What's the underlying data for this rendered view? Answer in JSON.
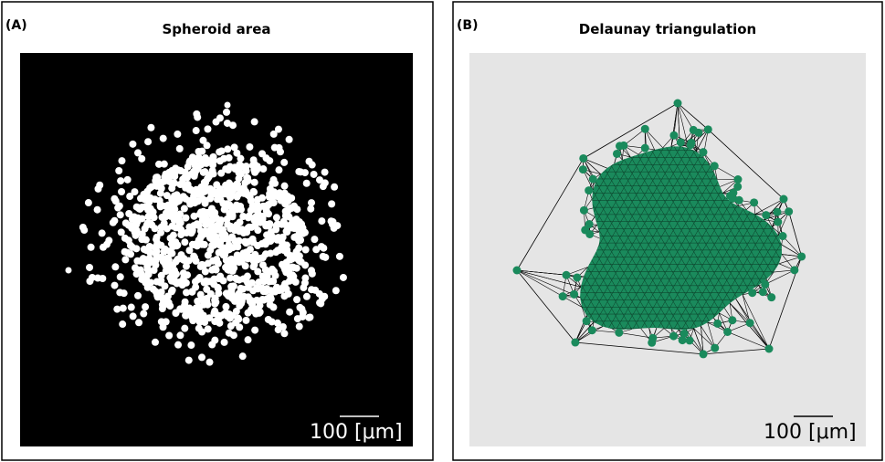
{
  "panels": [
    {
      "label": "(A)",
      "title": "Spheroid area",
      "scale_bar": "100 [μm]"
    },
    {
      "label": "(B)",
      "title": "Delaunay triangulation",
      "scale_bar": "100 [μm]"
    }
  ]
}
